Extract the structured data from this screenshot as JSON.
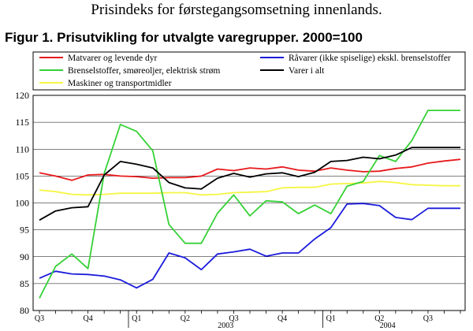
{
  "page_heading": "Prisindeks for førstegangsomsetning innenlands.",
  "chart_data": {
    "type": "line",
    "title": "Figur 1. Prisutvikling for utvalgte varegrupper. 2000=100",
    "xlabel": "",
    "ylabel": "",
    "ylim": [
      80,
      120
    ],
    "yticks": [
      80,
      85,
      90,
      95,
      100,
      105,
      110,
      115,
      120
    ],
    "grid": true,
    "legend_position": "top",
    "quarter_labels": [
      "Q3",
      "Q4",
      "Q1",
      "Q2",
      "Q3",
      "Q4",
      "Q1",
      "Q2",
      "Q3"
    ],
    "year_labels": [
      "2003",
      "2004"
    ],
    "x": [
      "2002-07",
      "2002-08",
      "2002-09",
      "2002-10",
      "2002-11",
      "2002-12",
      "2003-01",
      "2003-02",
      "2003-03",
      "2003-04",
      "2003-05",
      "2003-06",
      "2003-07",
      "2003-08",
      "2003-09",
      "2003-10",
      "2003-11",
      "2003-12",
      "2004-01",
      "2004-02",
      "2004-03",
      "2004-04",
      "2004-05",
      "2004-06",
      "2004-07",
      "2004-08",
      "2004-09"
    ],
    "series": [
      {
        "name": "Matvarer og levende dyr",
        "color": "#e8191b",
        "values": [
          105.6,
          105.0,
          104.2,
          105.2,
          105.3,
          105.0,
          104.9,
          104.6,
          104.7,
          104.7,
          105.0,
          106.3,
          106.0,
          106.5,
          106.3,
          106.7,
          106.1,
          105.9,
          106.5,
          106.1,
          105.8,
          105.9,
          106.4,
          106.7,
          107.4,
          107.8,
          108.1
        ]
      },
      {
        "name": "Brenselstoffer, smøreoljer, elektrisk strøm",
        "color": "#36d136",
        "values": [
          82.3,
          88.2,
          90.5,
          87.8,
          105.5,
          114.6,
          113.3,
          109.7,
          96.0,
          92.5,
          92.5,
          98.1,
          101.5,
          97.6,
          100.4,
          100.2,
          98.0,
          99.6,
          98.0,
          103.1,
          104.0,
          108.8,
          107.7,
          111.6,
          117.2,
          117.2,
          117.2
        ]
      },
      {
        "name": "Maskiner og transportmidler",
        "color": "#f5f542",
        "values": [
          102.4,
          102.1,
          101.6,
          101.5,
          101.6,
          101.8,
          101.8,
          101.8,
          101.9,
          101.9,
          101.5,
          101.6,
          101.9,
          102.0,
          102.1,
          102.8,
          102.9,
          102.9,
          103.5,
          103.6,
          103.7,
          104.0,
          103.8,
          103.4,
          103.3,
          103.2,
          103.2
        ]
      },
      {
        "name": "Råvarer (ikke spiselige) ekskl. brenselstoffer",
        "color": "#1c1cdc",
        "values": [
          86.0,
          87.3,
          86.8,
          86.7,
          86.4,
          85.7,
          84.2,
          85.8,
          90.7,
          89.8,
          87.6,
          90.5,
          90.9,
          91.4,
          90.1,
          90.7,
          90.7,
          93.3,
          95.4,
          99.8,
          99.9,
          99.5,
          97.3,
          96.9,
          99.0,
          99.0,
          99.0
        ]
      },
      {
        "name": "Varer i alt",
        "color": "#000000",
        "values": [
          96.8,
          98.5,
          99.1,
          99.3,
          105.2,
          107.7,
          107.2,
          106.5,
          103.8,
          102.8,
          102.6,
          104.6,
          105.5,
          104.8,
          105.4,
          105.6,
          104.9,
          105.7,
          107.7,
          107.9,
          108.5,
          108.2,
          108.9,
          110.3,
          110.3,
          110.3,
          110.3
        ]
      }
    ]
  }
}
